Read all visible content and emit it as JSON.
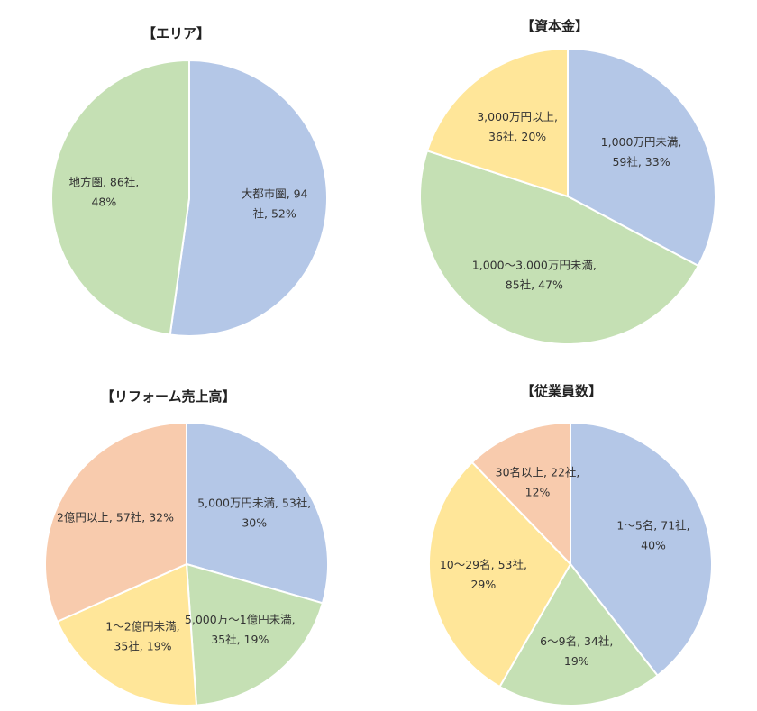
{
  "chart_data": [
    {
      "type": "pie",
      "title": "【エリア】",
      "categories": [
        "大都市圏",
        "地方圏"
      ],
      "values": [
        94,
        86
      ],
      "percents": [
        52,
        48
      ],
      "colors": [
        "#b4c7e7",
        "#c5e0b4"
      ],
      "labels": [
        [
          "大都市圏, 94",
          "社, 52%"
        ],
        [
          "地方圏, 86社,",
          "48%"
        ]
      ]
    },
    {
      "type": "pie",
      "title": "【資本金】",
      "categories": [
        "1,000万円未満",
        "1,000～3,000万円未満",
        "3,000万円以上"
      ],
      "values": [
        59,
        85,
        36
      ],
      "percents": [
        33,
        47,
        20
      ],
      "colors": [
        "#b4c7e7",
        "#c5e0b4",
        "#ffe699"
      ],
      "labels": [
        [
          "1,000万円未満,",
          "59社, 33%"
        ],
        [
          "1,000～3,000万円未満,",
          "85社, 47%"
        ],
        [
          "3,000万円以上,",
          "36社, 20%"
        ]
      ]
    },
    {
      "type": "pie",
      "title": "【リフォーム売上高】",
      "categories": [
        "5,000万円未満",
        "5,000万～1億円未満",
        "1～2億円未満",
        "2億円以上"
      ],
      "values": [
        53,
        35,
        35,
        57
      ],
      "percents": [
        30,
        19,
        19,
        32
      ],
      "colors": [
        "#b4c7e7",
        "#c5e0b4",
        "#ffe699",
        "#f8cbad"
      ],
      "labels": [
        [
          "5,000万円未満, 53社,",
          "30%"
        ],
        [
          "5,000万～1億円未満,",
          "35社, 19%"
        ],
        [
          "1～2億円未満,",
          "35社, 19%"
        ],
        [
          "2億円以上, 57社, 32%"
        ]
      ]
    },
    {
      "type": "pie",
      "title": "【従業員数】",
      "categories": [
        "1～5名",
        "6～9名",
        "10～29名",
        "30名以上"
      ],
      "values": [
        71,
        34,
        53,
        22
      ],
      "percents": [
        40,
        19,
        29,
        12
      ],
      "colors": [
        "#b4c7e7",
        "#c5e0b4",
        "#ffe699",
        "#f8cbad"
      ],
      "labels": [
        [
          "1～5名, 71社,",
          "40%"
        ],
        [
          "6～9名, 34社,",
          "19%"
        ],
        [
          "10～29名, 53社,",
          "29%"
        ],
        [
          "30名以上, 22社,",
          "12%"
        ]
      ]
    }
  ]
}
